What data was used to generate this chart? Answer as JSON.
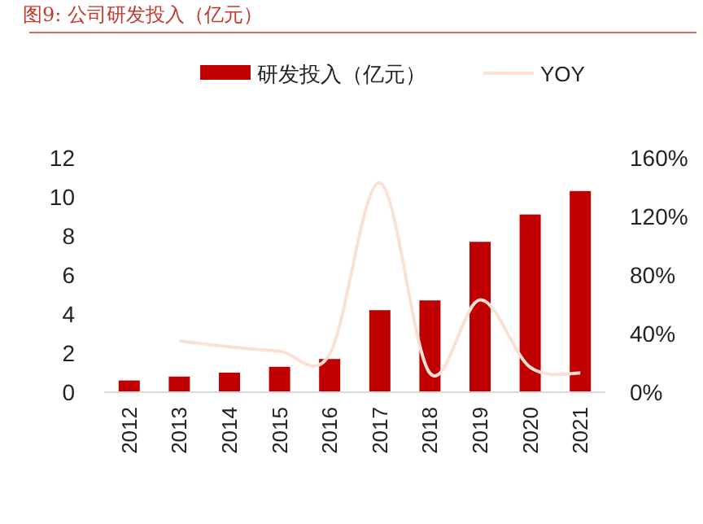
{
  "chart_data": {
    "type": "bar",
    "title": "图9:   公司研发投入（亿元）",
    "categories": [
      "2012",
      "2013",
      "2014",
      "2015",
      "2016",
      "2017",
      "2018",
      "2019",
      "2020",
      "2021"
    ],
    "series": [
      {
        "name": "研发投入（亿元）",
        "color": "#c00000",
        "values": [
          0.6,
          0.8,
          1.0,
          1.3,
          1.7,
          4.2,
          4.7,
          7.7,
          9.1,
          10.3
        ]
      },
      {
        "name": "YOY",
        "type": "line",
        "axis": "y2",
        "color": "#fbe1d4",
        "values": [
          null,
          35,
          31,
          28,
          26,
          143,
          13,
          63,
          17,
          13
        ]
      }
    ],
    "ylim": [
      0,
      12
    ],
    "yticks": [
      0,
      2,
      4,
      6,
      8,
      10,
      12
    ],
    "y2lim": [
      0,
      160
    ],
    "y2ticks": [
      {
        "value": 0,
        "label": "0%"
      },
      {
        "value": 40,
        "label": "40%"
      },
      {
        "value": 80,
        "label": "80%"
      },
      {
        "value": 120,
        "label": "120%"
      },
      {
        "value": 160,
        "label": "160%"
      }
    ],
    "legend": "top",
    "grid": false
  }
}
